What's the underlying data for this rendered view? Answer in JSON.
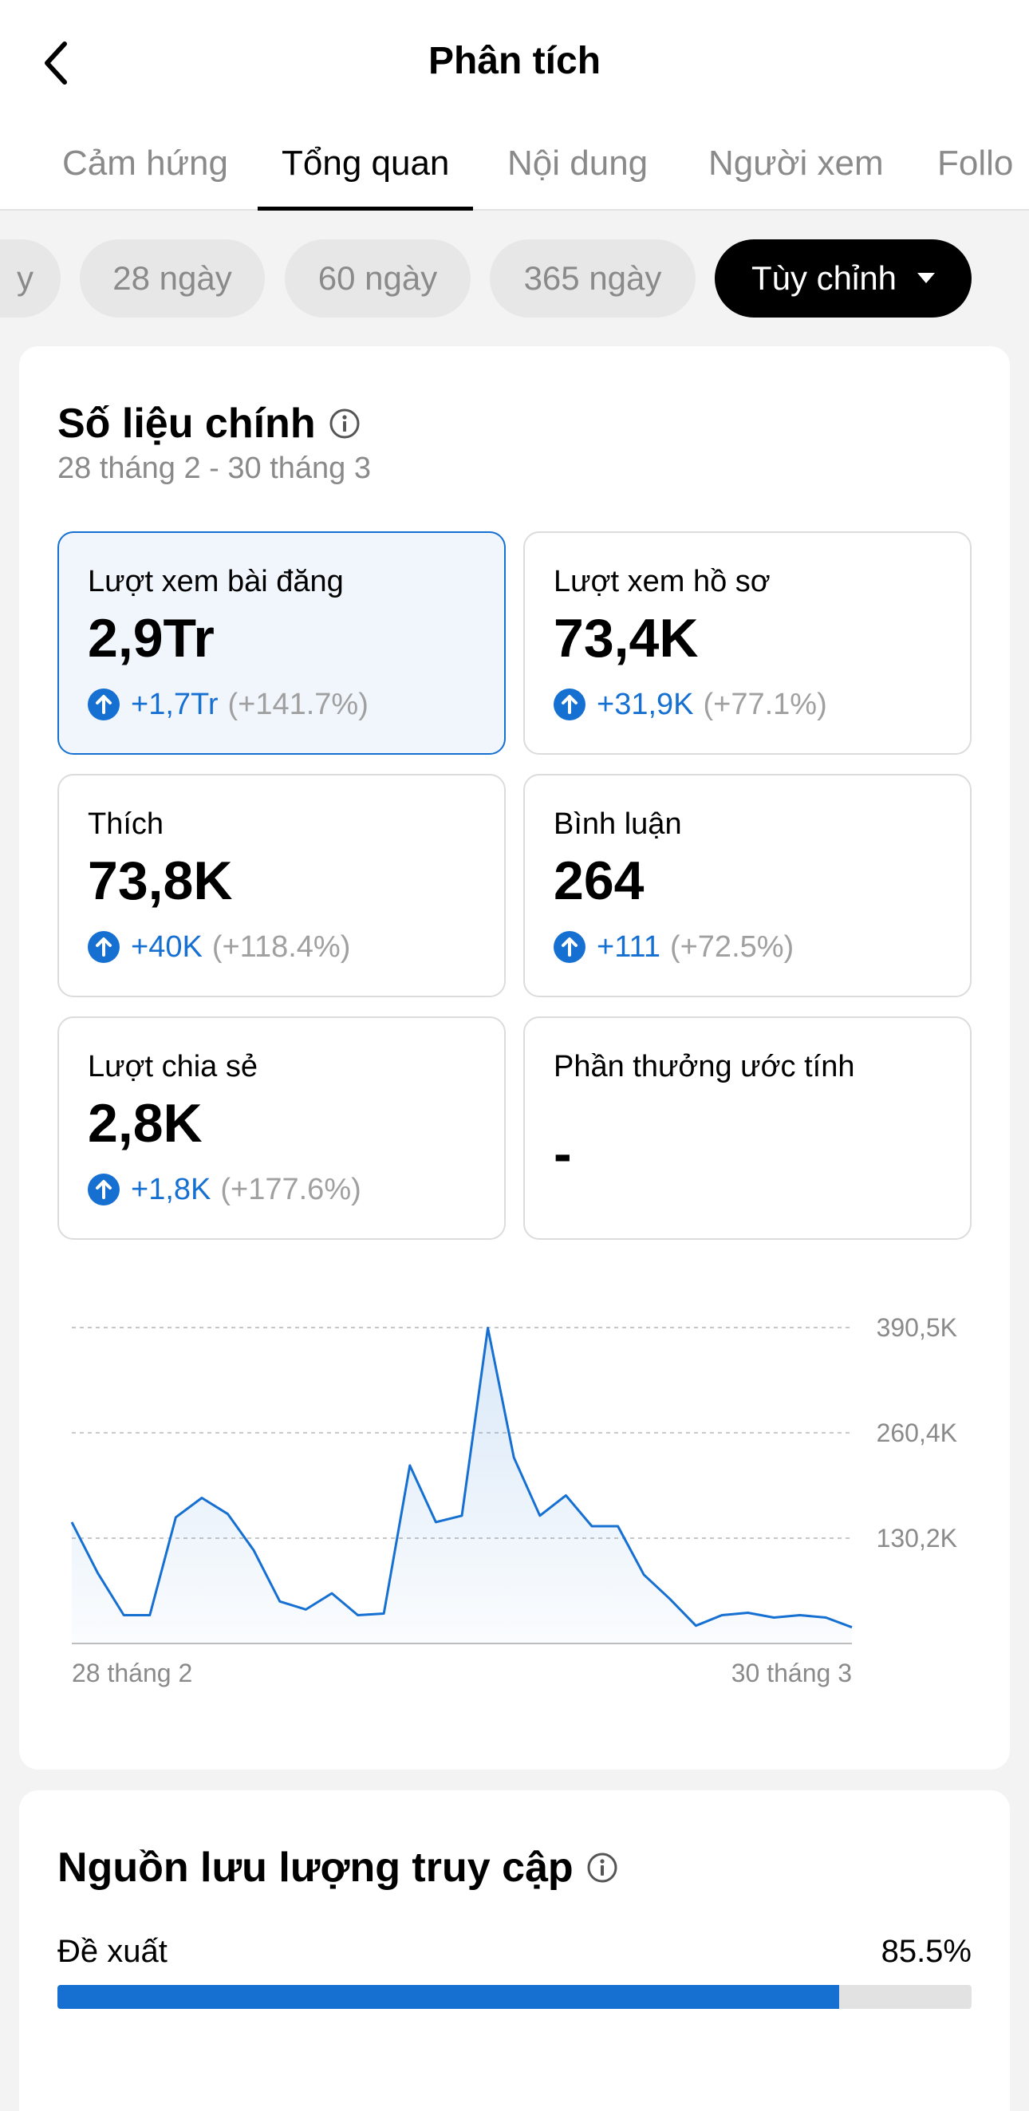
{
  "header": {
    "title": "Phân tích",
    "tabs": [
      "Cảm hứng",
      "Tổng quan",
      "Nội dung",
      "Người xem",
      "Follo"
    ]
  },
  "filters": {
    "pills": [
      "y",
      "28 ngày",
      "60 ngày",
      "365 ngày"
    ],
    "custom": "Tùy chỉnh"
  },
  "main_metrics": {
    "title": "Số liệu chính",
    "date_range": "28 tháng 2 - 30 tháng 3",
    "cards": [
      {
        "label": "Lượt xem bài đăng",
        "value": "2,9Tr",
        "delta": "+1,7Tr",
        "pct": "(+141.7%)"
      },
      {
        "label": "Lượt xem hồ sơ",
        "value": "73,4K",
        "delta": "+31,9K",
        "pct": "(+77.1%)"
      },
      {
        "label": "Thích",
        "value": "73,8K",
        "delta": "+40K",
        "pct": "(+118.4%)"
      },
      {
        "label": "Bình luận",
        "value": "264",
        "delta": "+111",
        "pct": "(+72.5%)"
      },
      {
        "label": "Lượt chia sẻ",
        "value": "2,8K",
        "delta": "+1,8K",
        "pct": "(+177.6%)"
      },
      {
        "label": "Phần thưởng ước tính",
        "value": "-"
      }
    ]
  },
  "chart_data": {
    "type": "area",
    "series": [
      {
        "values": [
          150,
          87,
          35,
          35,
          156,
          180,
          160,
          115,
          52,
          42,
          62,
          35,
          37,
          220,
          150,
          158,
          390,
          230,
          158,
          183,
          145,
          145,
          85,
          55,
          22,
          35,
          38,
          32,
          35,
          32,
          20
        ]
      }
    ],
    "x_tick_labels": [
      "28 tháng 2",
      "30 tháng 3"
    ],
    "y_tick_labels": [
      "130,2K",
      "260,4K",
      "390,5K"
    ],
    "y_ticks": [
      130.2,
      260.4,
      390.5
    ],
    "ylim": [
      0,
      390.5
    ],
    "grid": true,
    "color": "#1670d2"
  },
  "traffic": {
    "title": "Nguồn lưu lượng truy cập",
    "rows": [
      {
        "label": "Đề xuất",
        "value": "85.5%",
        "fraction": 0.855
      }
    ]
  },
  "colors": {
    "accent": "#1670d2"
  }
}
